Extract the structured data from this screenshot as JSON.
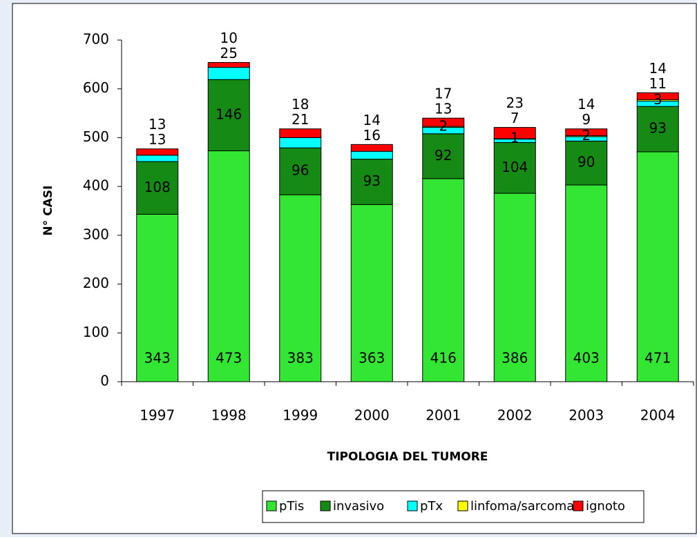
{
  "chart_data": {
    "type": "stacked_bar",
    "xlabel": "TIPOLOGIA DEL TUMORE",
    "ylabel": "N° CASI",
    "categories": [
      "1997",
      "1998",
      "1999",
      "2000",
      "2001",
      "2002",
      "2003",
      "2004"
    ],
    "series": [
      {
        "name": "pTis",
        "color": "#33e633",
        "values": [
          343,
          473,
          383,
          363,
          416,
          386,
          403,
          471
        ]
      },
      {
        "name": "invasivo",
        "color": "#158a15",
        "values": [
          108,
          146,
          96,
          93,
          92,
          104,
          90,
          93
        ]
      },
      {
        "name": "pTx",
        "color": "#00ffff",
        "values": [
          13,
          25,
          21,
          16,
          13,
          7,
          9,
          11
        ]
      },
      {
        "name": "linfoma/sarcoma",
        "color": "#ffff00",
        "values": [
          null,
          null,
          null,
          null,
          2,
          1,
          2,
          3
        ]
      },
      {
        "name": "ignoto",
        "color": "#ff0000",
        "values": [
          13,
          10,
          18,
          14,
          17,
          23,
          14,
          14
        ]
      }
    ],
    "ylim": [
      0,
      700
    ],
    "yticks": [
      0,
      100,
      200,
      300,
      400,
      500,
      600,
      700
    ],
    "legend": "bottom"
  }
}
